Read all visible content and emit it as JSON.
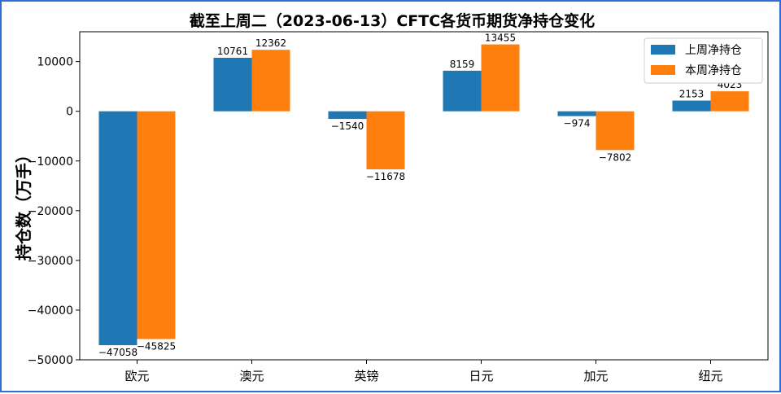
{
  "chart_data": {
    "type": "bar",
    "title": "截至上周二（2023-06-13）CFTC各货币期货净持仓变化",
    "xlabel": "",
    "ylabel": "持仓数（万手）",
    "categories": [
      "欧元",
      "澳元",
      "英镑",
      "日元",
      "加元",
      "纽元"
    ],
    "series": [
      {
        "name": "上周净持仓",
        "color": "#1f77b4",
        "values": [
          -47058,
          10761,
          -1540,
          8159,
          -974,
          2153
        ]
      },
      {
        "name": "本周净持仓",
        "color": "#ff7f0e",
        "values": [
          -45825,
          12362,
          -11678,
          13455,
          -7802,
          4023
        ]
      }
    ],
    "ylim": [
      -50000,
      16000
    ],
    "yticks": [
      10000,
      0,
      -10000,
      -20000,
      -30000,
      -40000,
      -50000
    ],
    "ytick_labels": [
      "10000",
      "0",
      "−10000",
      "−20000",
      "−30000",
      "−40000",
      "−50000"
    ],
    "grid": false,
    "legend_position": "top-right"
  },
  "colors": {
    "frame_border": "#2e6fd1"
  }
}
